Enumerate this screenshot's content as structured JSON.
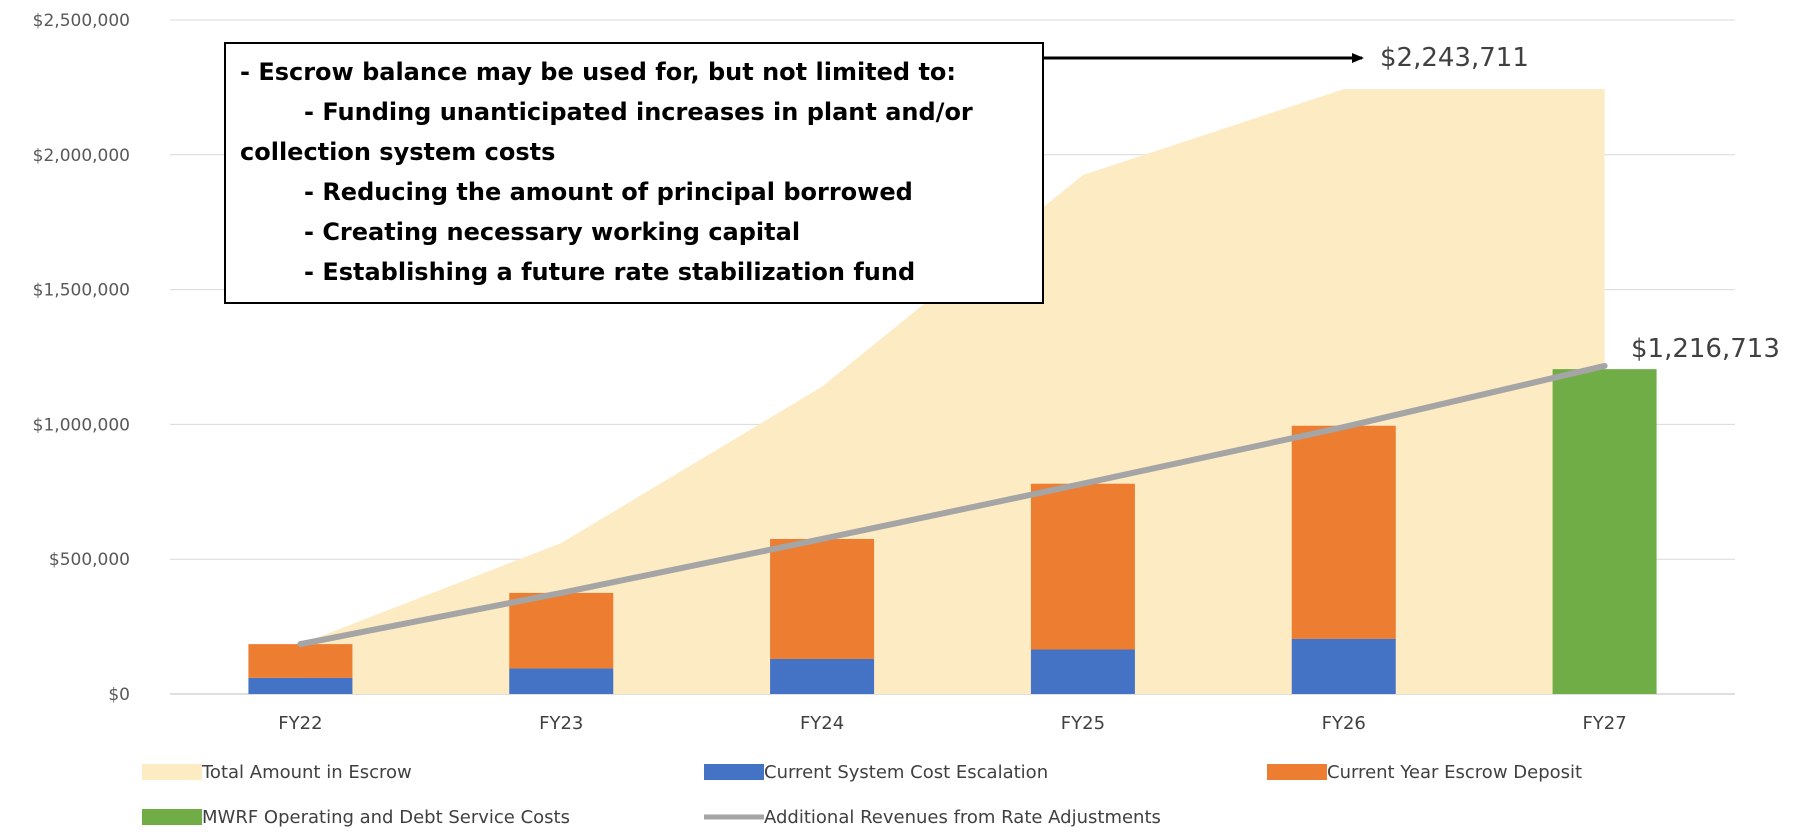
{
  "chart_data": {
    "type": "bar",
    "categories": [
      "FY22",
      "FY23",
      "FY24",
      "FY25",
      "FY26",
      "FY27"
    ],
    "y_axis": {
      "min": 0,
      "max": 2500000,
      "step": 500000,
      "tick_labels": [
        "$0",
        "$500,000",
        "$1,000,000",
        "$1,500,000",
        "$2,000,000",
        "$2,500,000"
      ]
    },
    "grid": "horizontal",
    "legend_position": "bottom",
    "series": [
      {
        "name": "Total Amount in Escrow",
        "kind": "area",
        "color": "#FDEBC4",
        "values": [
          185000,
          560000,
          1140000,
          1925000,
          2243711,
          2243711
        ]
      },
      {
        "name": "Current System Cost Escalation",
        "kind": "stacked-bar",
        "color": "#4472C4",
        "values": [
          60000,
          95000,
          130000,
          165000,
          205000,
          null
        ]
      },
      {
        "name": "Current Year Escrow Deposit",
        "kind": "stacked-bar",
        "color": "#ED7D31",
        "values": [
          125000,
          280000,
          445000,
          615000,
          790000,
          null
        ]
      },
      {
        "name": "MWRF Operating and Debt Service Costs",
        "kind": "bar",
        "color": "#70AD47",
        "values": [
          null,
          null,
          null,
          null,
          null,
          1205000
        ]
      },
      {
        "name": "Additional Revenues from Rate Adjustments",
        "kind": "line",
        "color": "#A5A5A5",
        "values": [
          185000,
          375000,
          575000,
          780000,
          990000,
          1216713
        ]
      }
    ],
    "data_labels": {
      "escrow_peak": "$2,243,711",
      "fy27_value": "$1,216,713"
    },
    "annotation": {
      "lines": [
        "- Escrow balance may be used for, but not limited to:",
        "- Funding unanticipated increases in plant and/or",
        "collection system costs",
        "- Reducing the amount of principal borrowed",
        "- Creating necessary working capital",
        "- Establishing a future rate stabilization fund"
      ]
    }
  }
}
